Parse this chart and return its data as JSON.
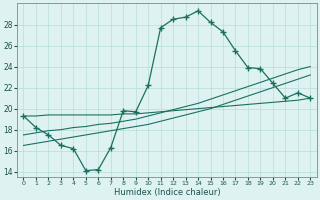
{
  "xlabel": "Humidex (Indice chaleur)",
  "x_values": [
    0,
    1,
    2,
    3,
    4,
    5,
    6,
    7,
    8,
    9,
    10,
    11,
    12,
    13,
    14,
    15,
    16,
    17,
    18,
    19,
    20,
    21,
    22,
    23
  ],
  "main_line": [
    19.3,
    18.2,
    17.5,
    16.5,
    16.2,
    14.1,
    14.2,
    16.3,
    19.8,
    19.7,
    22.2,
    27.7,
    28.5,
    28.7,
    29.3,
    28.2,
    27.3,
    25.5,
    23.9,
    23.8,
    22.4,
    21.0,
    21.5,
    21.0
  ],
  "trend1": [
    16.5,
    16.7,
    16.9,
    17.1,
    17.3,
    17.5,
    17.7,
    17.9,
    18.1,
    18.3,
    18.5,
    18.8,
    19.1,
    19.4,
    19.7,
    20.0,
    20.4,
    20.8,
    21.2,
    21.6,
    22.0,
    22.4,
    22.8,
    23.2
  ],
  "trend2": [
    17.5,
    17.7,
    17.9,
    18.0,
    18.2,
    18.3,
    18.5,
    18.6,
    18.8,
    19.0,
    19.3,
    19.6,
    19.9,
    20.2,
    20.5,
    20.9,
    21.3,
    21.7,
    22.1,
    22.5,
    22.9,
    23.3,
    23.7,
    24.0
  ],
  "trend3": [
    19.3,
    19.3,
    19.4,
    19.4,
    19.4,
    19.4,
    19.4,
    19.4,
    19.5,
    19.5,
    19.6,
    19.7,
    19.8,
    19.9,
    20.0,
    20.1,
    20.2,
    20.3,
    20.4,
    20.5,
    20.6,
    20.7,
    20.8,
    21.0
  ],
  "bg_color": "#dff2f2",
  "grid_color": "#b8dcdc",
  "line_color": "#1a7060",
  "ylim": [
    13.5,
    30.0
  ],
  "yticks": [
    14,
    16,
    18,
    20,
    22,
    24,
    26,
    28
  ],
  "xlim": [
    -0.5,
    23.5
  ]
}
